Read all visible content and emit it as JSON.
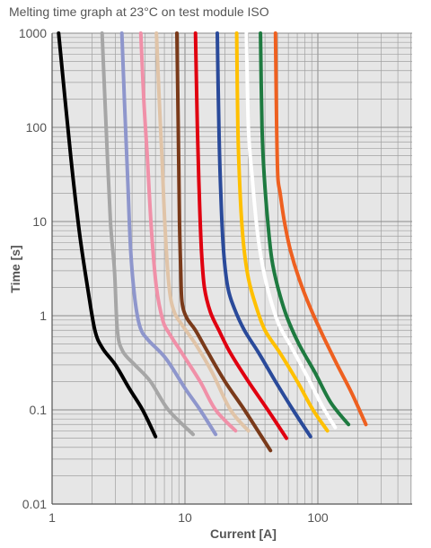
{
  "title": "Melting time graph at 23°C on test module ISO",
  "chart_data": {
    "type": "line",
    "title": "Melting time graph at 23°C on test module ISO",
    "xlabel": "Current [A]",
    "ylabel": "Time [s]",
    "xscale": "log",
    "yscale": "log",
    "xlim": [
      1,
      700
    ],
    "ylim": [
      0.01,
      1000
    ],
    "grid": true,
    "x_tick_labels": [
      {
        "value": 1,
        "label": "1"
      },
      {
        "value": 10,
        "label": "10"
      },
      {
        "value": 100,
        "label": "100"
      }
    ],
    "y_tick_labels": [
      {
        "value": 1000,
        "label": "1000"
      },
      {
        "value": 100,
        "label": "100"
      },
      {
        "value": 10,
        "label": "10"
      },
      {
        "value": 1,
        "label": "1"
      },
      {
        "value": 0.1,
        "label": "0.1"
      },
      {
        "value": 0.01,
        "label": "0.01"
      }
    ],
    "series": [
      {
        "color": "#000000",
        "points": [
          [
            1.12,
            1000
          ],
          [
            1.38,
            50
          ],
          [
            1.6,
            8
          ],
          [
            1.85,
            2
          ],
          [
            2.1,
            0.7
          ],
          [
            2.4,
            0.45
          ],
          [
            3.0,
            0.3
          ],
          [
            3.8,
            0.17
          ],
          [
            4.8,
            0.1
          ],
          [
            6.0,
            0.052
          ]
        ]
      },
      {
        "color": "#a6a6a6",
        "points": [
          [
            2.38,
            1000
          ],
          [
            2.55,
            100
          ],
          [
            2.75,
            10
          ],
          [
            2.95,
            3
          ],
          [
            3.1,
            0.7
          ],
          [
            3.4,
            0.42
          ],
          [
            4.2,
            0.3
          ],
          [
            5.5,
            0.2
          ],
          [
            7.5,
            0.1
          ],
          [
            11.5,
            0.055
          ]
        ]
      },
      {
        "color": "#8e96cc",
        "points": [
          [
            3.35,
            1000
          ],
          [
            3.5,
            200
          ],
          [
            3.7,
            30
          ],
          [
            3.9,
            5
          ],
          [
            4.2,
            1.5
          ],
          [
            4.6,
            0.75
          ],
          [
            5.3,
            0.55
          ],
          [
            7.2,
            0.35
          ],
          [
            10,
            0.17
          ],
          [
            13,
            0.1
          ],
          [
            17,
            0.055
          ]
        ]
      },
      {
        "color": "#f090a8",
        "points": [
          [
            4.65,
            1000
          ],
          [
            4.9,
            200
          ],
          [
            5.2,
            50
          ],
          [
            5.6,
            8
          ],
          [
            6.1,
            2
          ],
          [
            6.8,
            0.9
          ],
          [
            7.6,
            0.65
          ],
          [
            9.5,
            0.4
          ],
          [
            13,
            0.2
          ],
          [
            17,
            0.1
          ],
          [
            24,
            0.06
          ]
        ]
      },
      {
        "color": "#e0c4a8",
        "points": [
          [
            6.1,
            1000
          ],
          [
            6.4,
            200
          ],
          [
            6.7,
            50
          ],
          [
            7.1,
            8
          ],
          [
            7.6,
            2
          ],
          [
            8.3,
            1.1
          ],
          [
            9.5,
            0.8
          ],
          [
            12,
            0.5
          ],
          [
            16,
            0.25
          ],
          [
            22,
            0.1
          ],
          [
            30,
            0.06
          ]
        ]
      },
      {
        "color": "#7a3a1a",
        "points": [
          [
            8.7,
            1000
          ],
          [
            8.9,
            100
          ],
          [
            9.1,
            10
          ],
          [
            9.3,
            3
          ],
          [
            9.5,
            1.4
          ],
          [
            10.3,
            0.95
          ],
          [
            12,
            0.7
          ],
          [
            15,
            0.4
          ],
          [
            20,
            0.2
          ],
          [
            28,
            0.1
          ],
          [
            44,
            0.037
          ]
        ]
      },
      {
        "color": "#e00010",
        "points": [
          [
            12,
            1000
          ],
          [
            12.4,
            100
          ],
          [
            12.8,
            20
          ],
          [
            13.3,
            5
          ],
          [
            14,
            2
          ],
          [
            15.5,
            1.1
          ],
          [
            18,
            0.7
          ],
          [
            22,
            0.4
          ],
          [
            30,
            0.2
          ],
          [
            42,
            0.1
          ],
          [
            58,
            0.05
          ]
        ]
      },
      {
        "color": "#2a4a9a",
        "points": [
          [
            17.5,
            1000
          ],
          [
            18,
            100
          ],
          [
            18.6,
            20
          ],
          [
            19.5,
            5
          ],
          [
            21,
            2
          ],
          [
            23.5,
            1.2
          ],
          [
            28,
            0.7
          ],
          [
            36,
            0.4
          ],
          [
            48,
            0.2
          ],
          [
            65,
            0.1
          ],
          [
            88,
            0.052
          ]
        ]
      },
      {
        "color": "#ffc000",
        "points": [
          [
            24.5,
            1000
          ],
          [
            25,
            100
          ],
          [
            26,
            20
          ],
          [
            27.5,
            6
          ],
          [
            30,
            2.5
          ],
          [
            34,
            1.3
          ],
          [
            40,
            0.7
          ],
          [
            52,
            0.4
          ],
          [
            70,
            0.2
          ],
          [
            92,
            0.1
          ],
          [
            118,
            0.06
          ]
        ]
      },
      {
        "color": "#ffffff",
        "points": [
          [
            29,
            1000
          ],
          [
            30,
            100
          ],
          [
            32,
            30
          ],
          [
            35,
            8
          ],
          [
            39,
            3
          ],
          [
            44,
            1.5
          ],
          [
            51,
            0.8
          ],
          [
            64,
            0.45
          ],
          [
            84,
            0.22
          ],
          [
            108,
            0.11
          ],
          [
            135,
            0.065
          ]
        ]
      },
      {
        "color": "#1e7a40",
        "points": [
          [
            37,
            1000
          ],
          [
            38,
            100
          ],
          [
            39.5,
            30
          ],
          [
            42,
            10
          ],
          [
            45,
            4
          ],
          [
            50,
            2
          ],
          [
            58,
            1
          ],
          [
            72,
            0.5
          ],
          [
            95,
            0.25
          ],
          [
            125,
            0.12
          ],
          [
            170,
            0.07
          ]
        ]
      },
      {
        "color": "#ee6020",
        "points": [
          [
            48,
            1000
          ],
          [
            49,
            100
          ],
          [
            50,
            30
          ],
          [
            52,
            20
          ],
          [
            56,
            10
          ],
          [
            62,
            5
          ],
          [
            72,
            2.5
          ],
          [
            88,
            1.2
          ],
          [
            110,
            0.6
          ],
          [
            140,
            0.3
          ],
          [
            180,
            0.15
          ],
          [
            230,
            0.07
          ]
        ]
      }
    ]
  }
}
